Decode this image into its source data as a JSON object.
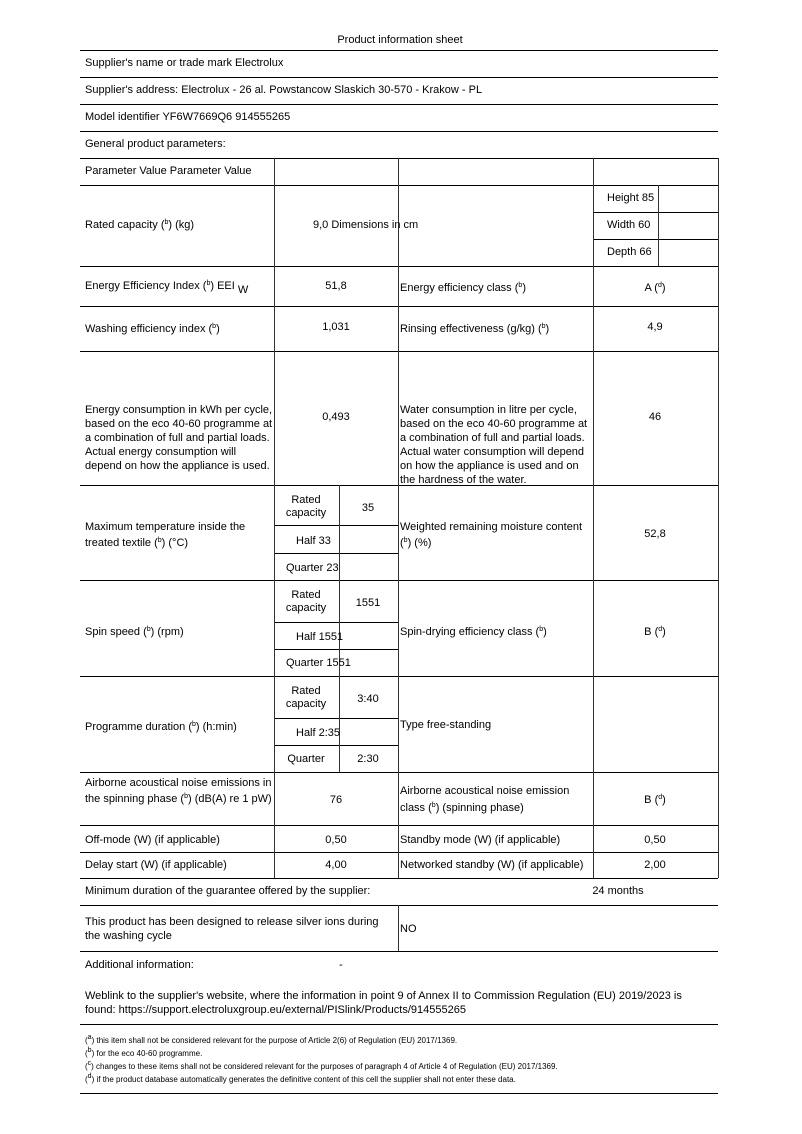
{
  "title": "Product information sheet",
  "supplier_name": "Supplier's name or trade mark Electrolux",
  "supplier_address": "Supplier's address: Electrolux - 26 al. Powstancow Slaskich 30-570 - Krakow - PL",
  "model_identifier": "Model identifier YF6W7669Q6 914555265",
  "general_parameters": "General product parameters:",
  "table": {
    "header": "Parameter Value Parameter Value",
    "rated_capacity": {
      "label": "Rated capacity (^b) (kg)",
      "value": "9,0 Dimensions in cm",
      "height": "Height 85",
      "width": "Width 60",
      "depth": "Depth 66"
    },
    "eei": {
      "label": "Energy Efficiency Index (^b) EEI",
      "sub": "W",
      "value": "51,8",
      "label2": "Energy efficiency class (^b)",
      "value2": "A (^d)"
    },
    "washing": {
      "label": "Washing efficiency index (^b)",
      "value": "1,031",
      "label2": "Rinsing effectiveness (g/kg) (^b)",
      "value2": "4,9"
    },
    "energy": {
      "label": "Energy consumption in kWh per cycle, based on the eco 40-60 programme at a combination of full and partial loads. Actual energy consumption will depend on how the appliance is used.",
      "value": "0,493",
      "label2": "Water consumption in litre per cycle, based on the eco 40-60 programme at a combination of full and partial loads. Actual water consumption will depend on how the appliance is used and on the hardness of the water.",
      "value2": "46"
    },
    "temperature": {
      "label": "Maximum temperature inside the treated textile (^b) (°C)",
      "rated_label": "Rated capacity",
      "rated_value": "35",
      "half": "Half 33",
      "quarter": "Quarter 23",
      "label2": "Weighted remaining moisture content (^b) (%)",
      "value2": "52,8"
    },
    "spin": {
      "label": "Spin speed (^b) (rpm)",
      "rated_label": "Rated capacity",
      "rated_value": "1551",
      "half": "Half 1551",
      "quarter": "Quarter 1551",
      "label2": "Spin-drying efficiency class (^b)",
      "value2": "B (^d)"
    },
    "duration": {
      "label": "Programme duration (^b) (h:min)",
      "rated_label": "Rated capacity",
      "rated_value": "3:40",
      "half": "Half 2:35",
      "quarter_label": "Quarter",
      "quarter_value": "2:30",
      "label2": "Type free-standing"
    },
    "noise": {
      "label": "Airborne acoustical noise emissions in the spinning phase (^b) (dB(A) re 1 pW)",
      "value": "76",
      "label2": "Airborne acoustical noise emission class (^b) (spinning phase)",
      "value2": "B (^d)"
    },
    "offmode": {
      "label": "Off-mode (W) (if applicable)",
      "value": "0,50",
      "label2": "Standby mode (W) (if applicable)",
      "value2": "0,50"
    },
    "delay": {
      "label": "Delay start (W) (if applicable)",
      "value": "4,00",
      "label2": "Networked standby (W) (if applicable)",
      "value2": "2,00"
    }
  },
  "guarantee": {
    "label": "Minimum duration of the guarantee offered by the supplier:",
    "value": "24 months"
  },
  "silver": {
    "label": "This product has been designed to release silver ions during the washing cycle",
    "value": "NO"
  },
  "additional": {
    "label": "Additional information:",
    "value": "-"
  },
  "weblink": "Weblink to the supplier's website, where the information in point 9 of Annex II to Commission Regulation (EU) 2019/2023 is found: https://support.electroluxgroup.eu/external/PISlink/Products/914555265",
  "footnotes": [
    "(^a) this item shall not be considered relevant for the purpose of Article 2(6) of Regulation (EU) 2017/1369.",
    "(^b) for the eco 40-60 programme.",
    "(^c) changes to these items shall not be considered relevant for the purposes of paragraph 4 of Article 4 of Regulation (EU) 2017/1369.",
    "(^d) if the product database automatically generates the definitive content of this cell the supplier shall not enter these data."
  ]
}
